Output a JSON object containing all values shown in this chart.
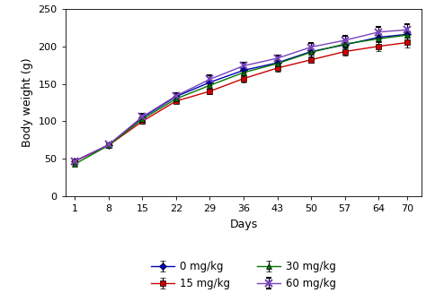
{
  "days": [
    1,
    8,
    15,
    22,
    29,
    36,
    43,
    50,
    57,
    64,
    70
  ],
  "series": [
    {
      "label": "0 mg/kg",
      "color": "#0000bb",
      "marker": "D",
      "markersize": 4.5,
      "values": [
        47,
        68,
        105,
        133,
        152,
        168,
        178,
        193,
        202,
        212,
        216
      ],
      "errors": [
        1.5,
        2,
        3.5,
        3.5,
        3.5,
        3.5,
        3.5,
        4,
        4.5,
        5,
        5
      ]
    },
    {
      "label": "15 mg/kg",
      "color": "#cc0000",
      "marker": "s",
      "markersize": 4.5,
      "values": [
        47,
        68,
        100,
        127,
        140,
        157,
        171,
        182,
        193,
        200,
        205
      ],
      "errors": [
        1.5,
        2,
        3,
        3,
        3.5,
        5,
        5,
        4,
        5,
        6,
        6
      ]
    },
    {
      "label": "30 mg/kg",
      "color": "#007700",
      "marker": "^",
      "markersize": 5,
      "values": [
        43,
        68,
        103,
        130,
        148,
        165,
        177,
        192,
        203,
        210,
        215
      ],
      "errors": [
        1.5,
        2,
        3,
        3.5,
        4,
        4,
        4.5,
        5,
        5,
        5,
        5.5
      ]
    },
    {
      "label": "60 mg/kg",
      "color": "#7744bb",
      "marker": "x",
      "markersize": 6,
      "values": [
        47,
        69,
        106,
        134,
        156,
        174,
        184,
        199,
        208,
        219,
        222
      ],
      "errors": [
        1.5,
        2,
        4,
        4,
        5,
        4,
        4,
        5,
        6,
        7,
        7
      ]
    }
  ],
  "xlabel": "Days",
  "ylabel": "Body weight (g)",
  "xlim": [
    -1,
    73
  ],
  "ylim": [
    0,
    250
  ],
  "yticks": [
    0,
    50,
    100,
    150,
    200,
    250
  ],
  "xticks": [
    1,
    8,
    15,
    22,
    29,
    36,
    43,
    50,
    57,
    64,
    70
  ],
  "legend_ncol": 2,
  "figsize": [
    4.84,
    3.27
  ],
  "dpi": 100
}
